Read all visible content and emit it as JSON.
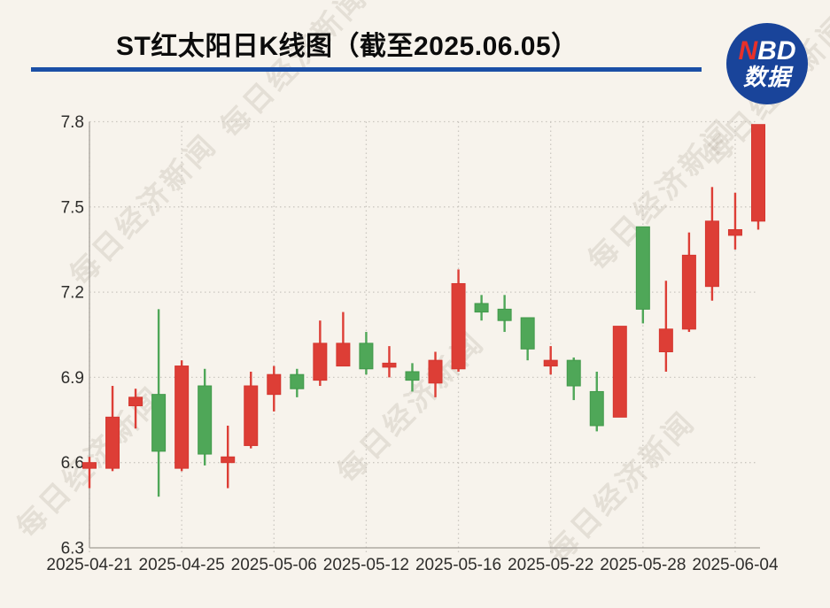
{
  "header": {
    "title": "ST红太阳日K线图（截至2025.06.05）"
  },
  "logo": {
    "nbd_red": "N",
    "nbd_white": "BD",
    "subtitle": "数据",
    "bg_color": "#19449a",
    "accent_color": "#e8302a"
  },
  "watermark": {
    "text": "每日经济新闻"
  },
  "chart_data": {
    "type": "candlestick",
    "title": "ST红太阳日K线图（截至2025.06.05）",
    "xlabel": "",
    "ylabel": "",
    "ylim": [
      6.3,
      7.8
    ],
    "yticks": [
      6.3,
      6.6,
      6.9,
      7.2,
      7.5,
      7.8
    ],
    "grid": true,
    "legend": "none",
    "up_color": "#dd3e36",
    "down_color": "#4fa758",
    "background": "#f7f3ec",
    "xtick_labels": [
      "2025-04-21",
      "2025-04-25",
      "2025-05-06",
      "2025-05-12",
      "2025-05-16",
      "2025-05-22",
      "2025-05-28",
      "2025-06-04"
    ],
    "xtick_indices": [
      0,
      4,
      8,
      12,
      16,
      20,
      24,
      28
    ],
    "ohlc_order": [
      "open",
      "high",
      "low",
      "close"
    ],
    "ohlc": [
      [
        6.58,
        6.62,
        6.51,
        6.6
      ],
      [
        6.58,
        6.87,
        6.57,
        6.76
      ],
      [
        6.8,
        6.86,
        6.72,
        6.83
      ],
      [
        6.84,
        7.14,
        6.48,
        6.64
      ],
      [
        6.58,
        6.96,
        6.57,
        6.94
      ],
      [
        6.87,
        6.93,
        6.59,
        6.63
      ],
      [
        6.6,
        6.73,
        6.51,
        6.62
      ],
      [
        6.66,
        6.92,
        6.65,
        6.87
      ],
      [
        6.84,
        6.94,
        6.78,
        6.91
      ],
      [
        6.91,
        6.93,
        6.83,
        6.86
      ],
      [
        6.89,
        7.1,
        6.87,
        7.02
      ],
      [
        6.94,
        7.13,
        6.94,
        7.02
      ],
      [
        7.02,
        7.06,
        6.91,
        6.93
      ],
      [
        6.94,
        7.01,
        6.9,
        6.95
      ],
      [
        6.92,
        6.95,
        6.85,
        6.89
      ],
      [
        6.88,
        6.99,
        6.83,
        6.96
      ],
      [
        6.93,
        7.28,
        6.92,
        7.23
      ],
      [
        7.16,
        7.19,
        7.1,
        7.13
      ],
      [
        7.14,
        7.19,
        7.06,
        7.1
      ],
      [
        7.11,
        7.11,
        6.96,
        7.0
      ],
      [
        6.94,
        7.01,
        6.91,
        6.96
      ],
      [
        6.96,
        6.97,
        6.82,
        6.87
      ],
      [
        6.85,
        6.92,
        6.71,
        6.73
      ],
      [
        6.76,
        7.08,
        6.76,
        7.08
      ],
      [
        7.43,
        7.43,
        7.09,
        7.14
      ],
      [
        6.99,
        7.24,
        6.92,
        7.07
      ],
      [
        7.07,
        7.41,
        7.06,
        7.33
      ],
      [
        7.22,
        7.57,
        7.17,
        7.45
      ],
      [
        7.4,
        7.55,
        7.35,
        7.42
      ],
      [
        7.45,
        7.79,
        7.42,
        7.79
      ]
    ]
  }
}
